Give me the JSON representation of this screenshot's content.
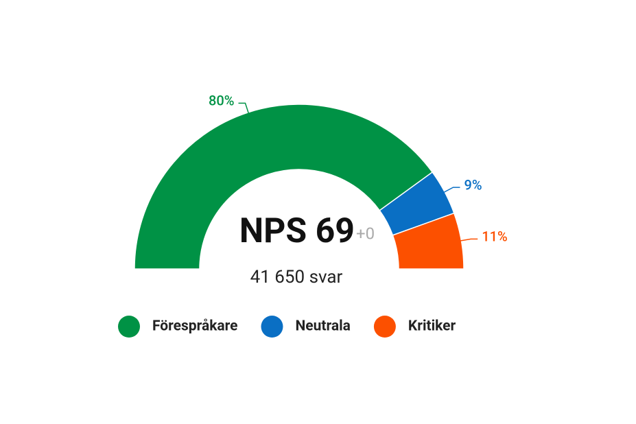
{
  "chart_data": {
    "type": "pie",
    "half": true,
    "categories": [
      "Förespråkare",
      "Neutrala",
      "Kritiker"
    ],
    "values": [
      80,
      9,
      11
    ],
    "value_labels": [
      "80%",
      "9%",
      "11%"
    ],
    "colors": [
      "#009245",
      "#0a6fc4",
      "#fc5000"
    ],
    "center_label": "NPS 69",
    "change_label": "+0",
    "subtitle": "41 650 svar",
    "legend": "bottom"
  }
}
